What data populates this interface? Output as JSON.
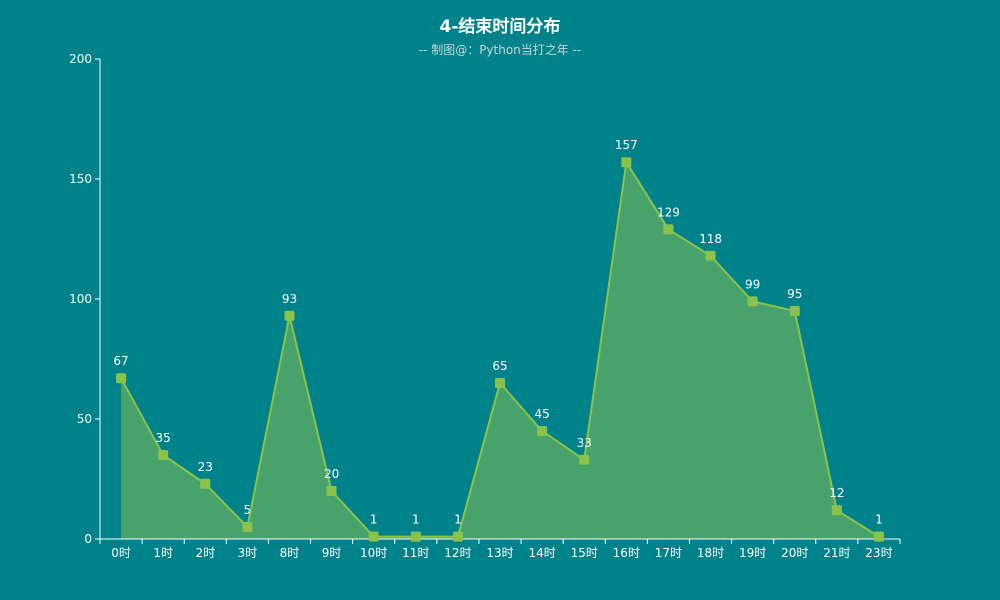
{
  "chart_data": {
    "type": "area",
    "title": "4-结束时间分布",
    "subtitle": "-- 制图@：Python当打之年 --",
    "xlabel": "",
    "ylabel": "",
    "categories": [
      "0时",
      "1时",
      "2时",
      "3时",
      "8时",
      "9时",
      "10时",
      "11时",
      "12时",
      "13时",
      "14时",
      "15时",
      "16时",
      "17时",
      "18时",
      "19时",
      "20时",
      "21时",
      "23时"
    ],
    "values": [
      67,
      35,
      23,
      5,
      93,
      20,
      1,
      1,
      1,
      65,
      45,
      33,
      157,
      129,
      118,
      99,
      95,
      12,
      1
    ],
    "ylim": [
      0,
      200
    ],
    "yticks": [
      0,
      50,
      100,
      150,
      200
    ],
    "grid": false,
    "data_labels": true
  },
  "colors": {
    "background": "#00828A",
    "line": "#8BC34A",
    "area": "#4CA36A",
    "marker": "#8BC34A",
    "axis": "#FFFFFF",
    "text": "#FFFFFF",
    "subtitle": "#C8D8DA"
  }
}
